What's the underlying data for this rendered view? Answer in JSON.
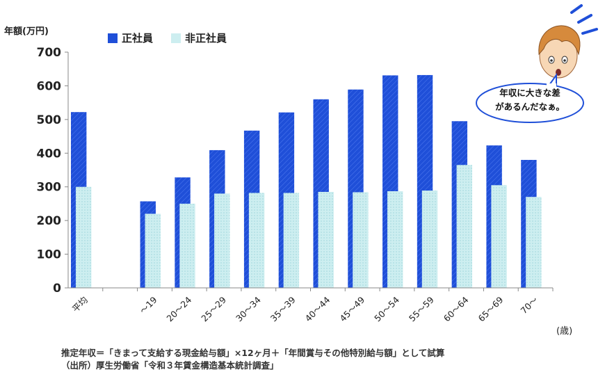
{
  "chart_data": {
    "type": "bar",
    "ylabel": "年額(万円)",
    "x_unit": "(歳)",
    "ylim": [
      0,
      700
    ],
    "yticks": [
      0,
      100,
      200,
      300,
      400,
      500,
      600,
      700
    ],
    "categories": [
      "平均",
      "",
      "～19",
      "20～24",
      "25～29",
      "30～34",
      "35～39",
      "40～44",
      "45～49",
      "50～54",
      "55～59",
      "60～64",
      "65～69",
      "70～"
    ],
    "series": [
      {
        "name": "正社員",
        "color": "#1f4fd8",
        "values": [
          522,
          null,
          257,
          328,
          409,
          467,
          521,
          560,
          589,
          631,
          632,
          495,
          423,
          380
        ]
      },
      {
        "name": "非正社員",
        "color": "#cdeef0",
        "values": [
          300,
          null,
          220,
          250,
          280,
          282,
          282,
          285,
          284,
          287,
          289,
          365,
          305,
          270
        ]
      }
    ],
    "grid": false
  },
  "speech_bubble": {
    "line1": "年収に大きな差",
    "line2": "があるんだなぁ。"
  },
  "notes": {
    "line1": "推定年収＝「きまって支給する現金給与額」×12ヶ月＋「年間賞与その他特別給与額」として試算",
    "line2": "（出所）厚生労働省「令和３年賃金構造基本統計調査」"
  },
  "character": {
    "icon": "worried-boy-icon",
    "hair": "#d68a3c",
    "skin": "#f7d7b5",
    "accent": "#1f4fd8"
  }
}
